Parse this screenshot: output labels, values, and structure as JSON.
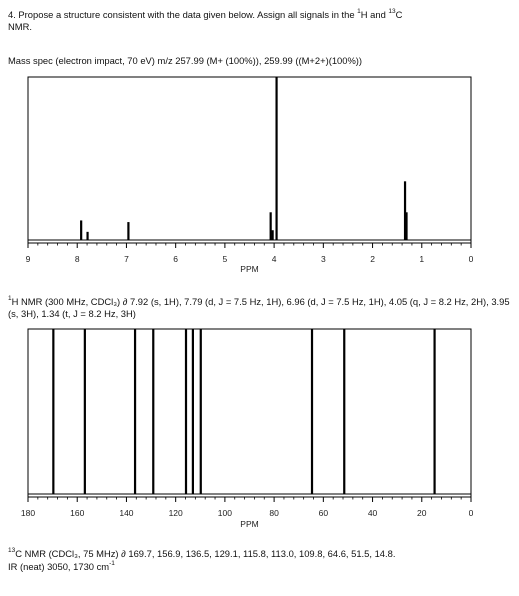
{
  "question": {
    "line1_pre": "4. Propose a structure consistent with the data given below. Assign all signals in the ",
    "sup_h": "1",
    "line1_mid": "H and ",
    "sup_c": "13",
    "line1_post": "C",
    "line2": "NMR."
  },
  "mass_spec": "Mass spec (electron impact, 70 eV) m/z 257.99 (M+ (100%)), 259.99 ((M+2+)(100%))",
  "h_nmr": {
    "sup": "1",
    "text": "H NMR (300 MHz, CDCl₃) ∂ 7.92 (s, 1H), 7.79 (d, J = 7.5 Hz, 1H), 6.96 (d, J = 7.5 Hz, 1H), 4.05 (q, J = 8.2 Hz, 2H), 3.95 (s, 3H), 1.34 (t, J = 8.2 Hz, 3H)"
  },
  "c_nmr": {
    "sup": "13",
    "text": "C NMR (CDCl₃, 75 MHz) ∂ 169.7, 156.9, 136.5, 129.1, 115.8, 113.0, 109.8, 64.6, 51.5, 14.8."
  },
  "ir": {
    "pre": "IR (neat) 3050, 1730 cm",
    "sup": "-1"
  },
  "chart_data": [
    {
      "type": "line",
      "name": "1H NMR spectrum",
      "xlabel": "PPM",
      "ylabel": "",
      "xlim": [
        9,
        0
      ],
      "x_reversed": true,
      "ticks": [
        "9",
        "8",
        "7",
        "6",
        "5",
        "4",
        "3",
        "2",
        "1",
        "0"
      ],
      "peaks": [
        {
          "ppm": 7.92,
          "intensity": 0.12
        },
        {
          "ppm": 7.79,
          "intensity": 0.05
        },
        {
          "ppm": 6.96,
          "intensity": 0.11
        },
        {
          "ppm": 4.07,
          "intensity": 0.17
        },
        {
          "ppm": 4.03,
          "intensity": 0.06
        },
        {
          "ppm": 3.95,
          "intensity": 1.0
        },
        {
          "ppm": 1.34,
          "intensity": 0.36
        },
        {
          "ppm": 1.31,
          "intensity": 0.17
        }
      ]
    },
    {
      "type": "line",
      "name": "13C NMR spectrum",
      "xlabel": "PPM",
      "ylabel": "",
      "xlim": [
        180,
        0
      ],
      "x_reversed": true,
      "ticks": [
        "180",
        "160",
        "140",
        "120",
        "100",
        "80",
        "60",
        "40",
        "20",
        "0"
      ],
      "peaks": [
        {
          "ppm": 169.7,
          "intensity": 1.0
        },
        {
          "ppm": 156.9,
          "intensity": 1.0
        },
        {
          "ppm": 136.5,
          "intensity": 1.0
        },
        {
          "ppm": 129.1,
          "intensity": 1.0
        },
        {
          "ppm": 115.8,
          "intensity": 1.0
        },
        {
          "ppm": 113.0,
          "intensity": 1.0
        },
        {
          "ppm": 109.8,
          "intensity": 1.0
        },
        {
          "ppm": 64.6,
          "intensity": 1.0
        },
        {
          "ppm": 51.5,
          "intensity": 1.0
        },
        {
          "ppm": 14.8,
          "intensity": 1.0
        }
      ]
    }
  ]
}
